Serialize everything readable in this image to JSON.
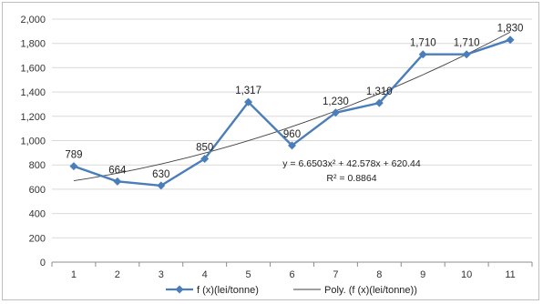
{
  "chart_data": {
    "type": "line",
    "title": "",
    "xlabel": "",
    "ylabel": "",
    "x": [
      "1",
      "2",
      "3",
      "4",
      "5",
      "6",
      "7",
      "8",
      "9",
      "10",
      "11"
    ],
    "ylim": [
      0,
      2000
    ],
    "yticks": [
      "0",
      "200",
      "400",
      "600",
      "800",
      "1,000",
      "1,200",
      "1,400",
      "1,600",
      "1,800",
      "2,000"
    ],
    "grid": true,
    "legend_position": "bottom",
    "series": [
      {
        "name": "f (x)(lei/tonne)",
        "values": [
          789,
          664,
          630,
          850,
          1317,
          960,
          1230,
          1310,
          1710,
          1710,
          1830
        ],
        "labels": [
          "789",
          "664",
          "630",
          "850",
          "1,317",
          "960",
          "1,230",
          "1,310",
          "1,710",
          "1,710",
          "1,830"
        ],
        "color": "#4a7ebb",
        "marker": "diamond"
      }
    ],
    "trendline": {
      "name": "Poly. (f (x)(lei/tonne))",
      "type": "polynomial",
      "order": 2,
      "coefficients": {
        "a": 6.6503,
        "b": 42.578,
        "c": 620.44
      },
      "equation": "y = 6.6503x² + 42.578x + 620.44",
      "r_squared": "R² = 0.8864",
      "color": "#404040"
    }
  }
}
